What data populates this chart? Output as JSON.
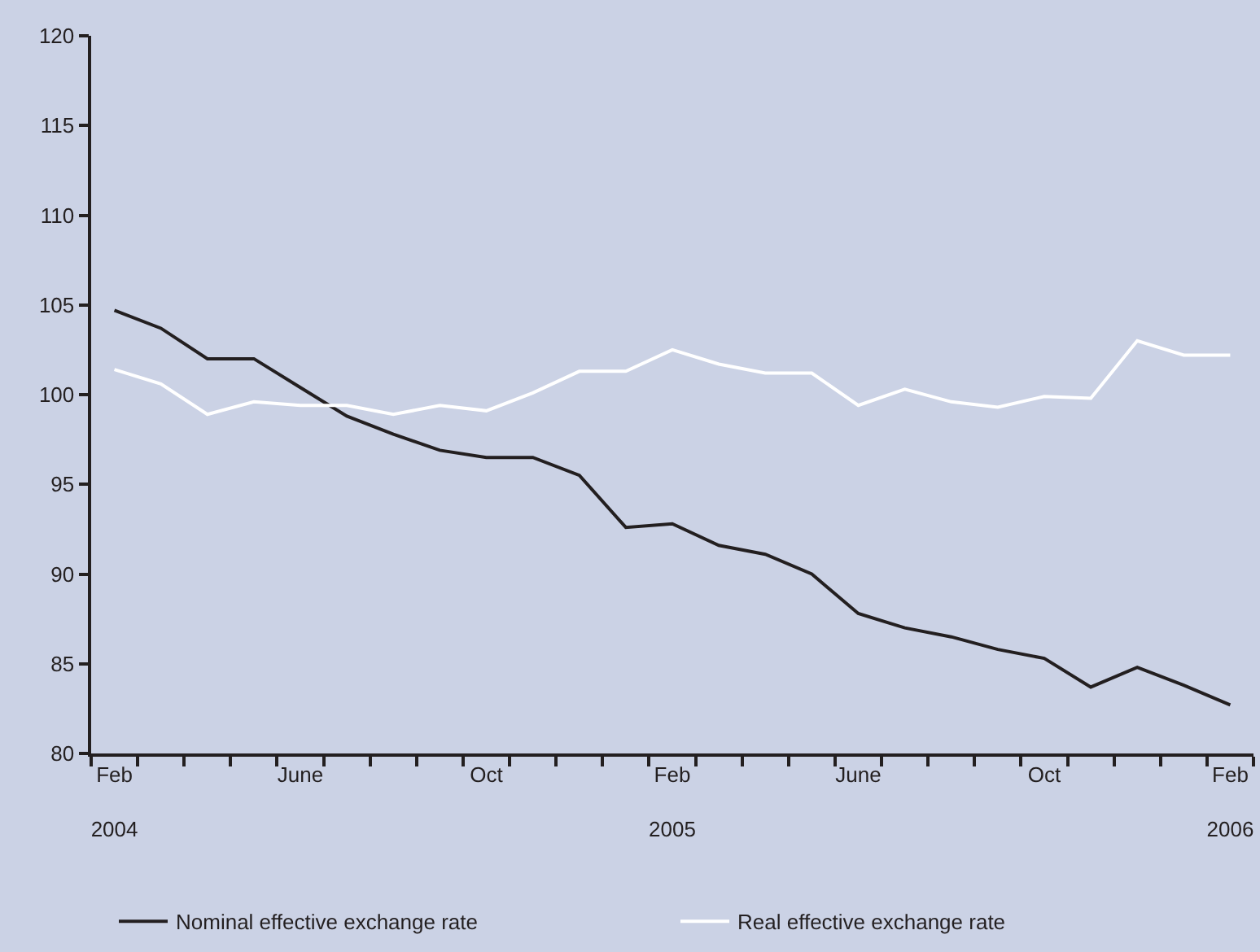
{
  "chart_data": {
    "type": "line",
    "categories": [
      "Feb\n2004",
      null,
      null,
      null,
      "June",
      null,
      null,
      null,
      "Oct",
      null,
      null,
      null,
      "Feb\n2005",
      null,
      null,
      null,
      "June",
      null,
      null,
      null,
      "Oct",
      null,
      null,
      null,
      "Feb\n2006"
    ],
    "series": [
      {
        "name": "Nominal effective exchange rate",
        "color": "#231f20",
        "values": [
          104.7,
          103.7,
          102.0,
          102.0,
          100.4,
          98.8,
          97.8,
          96.9,
          96.5,
          96.5,
          95.5,
          92.6,
          92.8,
          91.6,
          91.1,
          90.0,
          87.8,
          87.0,
          86.5,
          85.8,
          85.3,
          83.7,
          84.8,
          83.8,
          82.7
        ]
      },
      {
        "name": "Real effective exchange rate",
        "color": "#ffffff",
        "values": [
          101.4,
          100.6,
          98.9,
          99.6,
          99.4,
          99.4,
          98.9,
          99.4,
          99.1,
          100.1,
          101.3,
          101.3,
          102.5,
          101.7,
          101.2,
          101.2,
          99.4,
          100.3,
          99.6,
          99.3,
          99.9,
          99.8,
          103.0,
          102.2,
          102.2
        ]
      }
    ],
    "ylim": [
      80,
      120
    ],
    "yticks": [
      80,
      85,
      90,
      95,
      100,
      105,
      110,
      115,
      120
    ],
    "grid": false,
    "legend": "bottom",
    "marker": "none",
    "line_style": "solid"
  }
}
